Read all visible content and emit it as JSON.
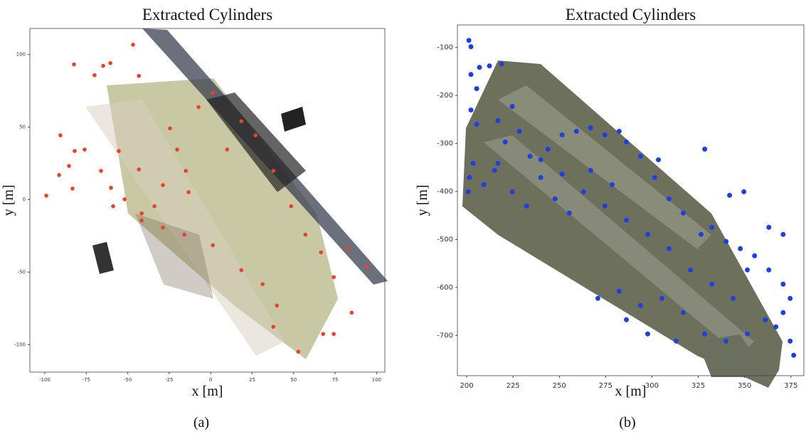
{
  "chart_data": [
    {
      "type": "scatter",
      "title": "Extracted Cylinders",
      "xlabel": "x [m]",
      "ylabel": "y [m]",
      "caption": "(a)",
      "xlim": [
        -109,
        105
      ],
      "ylim": [
        -119,
        118
      ],
      "xticks": [
        -100,
        -75,
        -50,
        -25,
        0,
        25,
        50,
        75,
        100
      ],
      "yticks": [
        -100,
        -50,
        0,
        50,
        100
      ],
      "grid": false,
      "series": [
        {
          "color": "#e8412c",
          "x": [
            -99.1,
            -90.6,
            -91.4,
            -85.4,
            -83.3,
            -76.0,
            -82.0,
            -70.0,
            -64.8,
            -60.5,
            -46.8,
            -43.3,
            -66.1,
            -60.1,
            -58.8,
            -51.9,
            -43.3,
            -41.6,
            -33.9,
            -28.8,
            -24.5,
            -20.2,
            -15.0,
            -13.3,
            -7.3,
            1.3,
            9.9,
            18.5,
            27.0,
            37.8,
            48.5,
            57.1,
            66.5,
            74.2,
            82.8,
            94.4,
            85.0,
            74.2,
            67.8,
            52.8,
            37.8,
            39.9,
            31.3,
            18.5,
            1.3,
            -15.9,
            -28.8,
            -41.6,
            -82.4,
            -55.4
          ],
          "y": [
            2.7,
            44.3,
            16.9,
            23.2,
            7.6,
            34.5,
            33.5,
            85.8,
            92.2,
            94.1,
            106.8,
            85.3,
            19.8,
            8.1,
            -4.6,
            0.2,
            20.8,
            -9.5,
            -4.6,
            10.0,
            49.1,
            34.5,
            19.8,
            5.1,
            63.8,
            73.6,
            34.5,
            54.0,
            44.3,
            19.8,
            -4.6,
            -24.2,
            -36.4,
            -53.5,
            -34.0,
            -46.2,
            -78.0,
            -92.7,
            -92.7,
            -104.9,
            -87.8,
            -73.1,
            -58.4,
            -48.7,
            -31.5,
            -24.2,
            -19.3,
            -14.4,
            93.2,
            33.5
          ]
        }
      ]
    },
    {
      "type": "scatter",
      "title": "Extracted Cylinders",
      "xlabel": "x [m]",
      "ylabel": "y [m]",
      "caption": "(b)",
      "xlim": [
        195,
        382
      ],
      "ylim": [
        -784,
        -53
      ],
      "xticks": [
        200,
        225,
        250,
        275,
        300,
        325,
        350,
        375
      ],
      "yticks": [
        -700,
        -600,
        -500,
        -400,
        -300,
        -200,
        -100
      ],
      "grid": false,
      "series": [
        {
          "color": "#1f3fe0",
          "x": [
            201.2,
            202.3,
            206.9,
            212.3,
            218.8,
            202.3,
            202.3,
            205.4,
            205.4,
            203.5,
            201.5,
            200.8,
            209.2,
            215.0,
            220.8,
            216.9,
            224.6,
            228.5,
            234.2,
            240.0,
            247.7,
            255.4,
            243.8,
            251.5,
            259.2,
            266.9,
            274.6,
            282.3,
            293.8,
            301.5,
            309.2,
            316.9,
            326.5,
            332.3,
            340.0,
            347.7,
            355.4,
            363.1,
            370.8,
            374.6,
            370.8,
            366.9,
            374.6,
            376.5,
            361.2,
            351.5,
            340.0,
            328.5,
            316.9,
            305.4,
            293.8,
            282.3,
            270.8,
            286.2,
            297.7,
            313.1,
            351.5,
            343.8,
            332.3,
            320.8,
            309.2,
            297.7,
            286.2,
            274.6,
            263.1,
            251.5,
            240.0,
            232.3,
            216.9,
            224.6,
            349.6,
            341.9,
            328.5,
            303.5,
            370.8,
            363.1,
            266.9,
            278.5,
            286.2
          ],
          "y": [
            -85.2,
            -98.5,
            -141.5,
            -138.5,
            -134.1,
            -156.3,
            -230.4,
            -185.9,
            -260.0,
            -341.5,
            -371.1,
            -400.7,
            -385.9,
            -356.3,
            -297.0,
            -252.6,
            -223.0,
            -274.8,
            -326.7,
            -371.1,
            -415.6,
            -445.2,
            -311.9,
            -282.2,
            -274.8,
            -267.4,
            -282.2,
            -274.8,
            -326.7,
            -371.1,
            -415.6,
            -445.2,
            -489.6,
            -474.8,
            -504.4,
            -519.3,
            -534.1,
            -563.7,
            -593.3,
            -623.0,
            -652.6,
            -682.2,
            -711.9,
            -741.5,
            -667.4,
            -697.0,
            -711.9,
            -697.0,
            -652.6,
            -623.0,
            -637.8,
            -608.1,
            -623.0,
            -667.4,
            -697.0,
            -711.9,
            -563.7,
            -623.0,
            -593.3,
            -563.7,
            -519.3,
            -489.6,
            -460.0,
            -430.4,
            -400.7,
            -363.7,
            -334.1,
            -430.4,
            -341.5,
            -400.7,
            -400.7,
            -408.1,
            -311.9,
            -334.1,
            -489.6,
            -474.8,
            -356.3,
            -385.9,
            -297.0
          ]
        }
      ]
    }
  ]
}
